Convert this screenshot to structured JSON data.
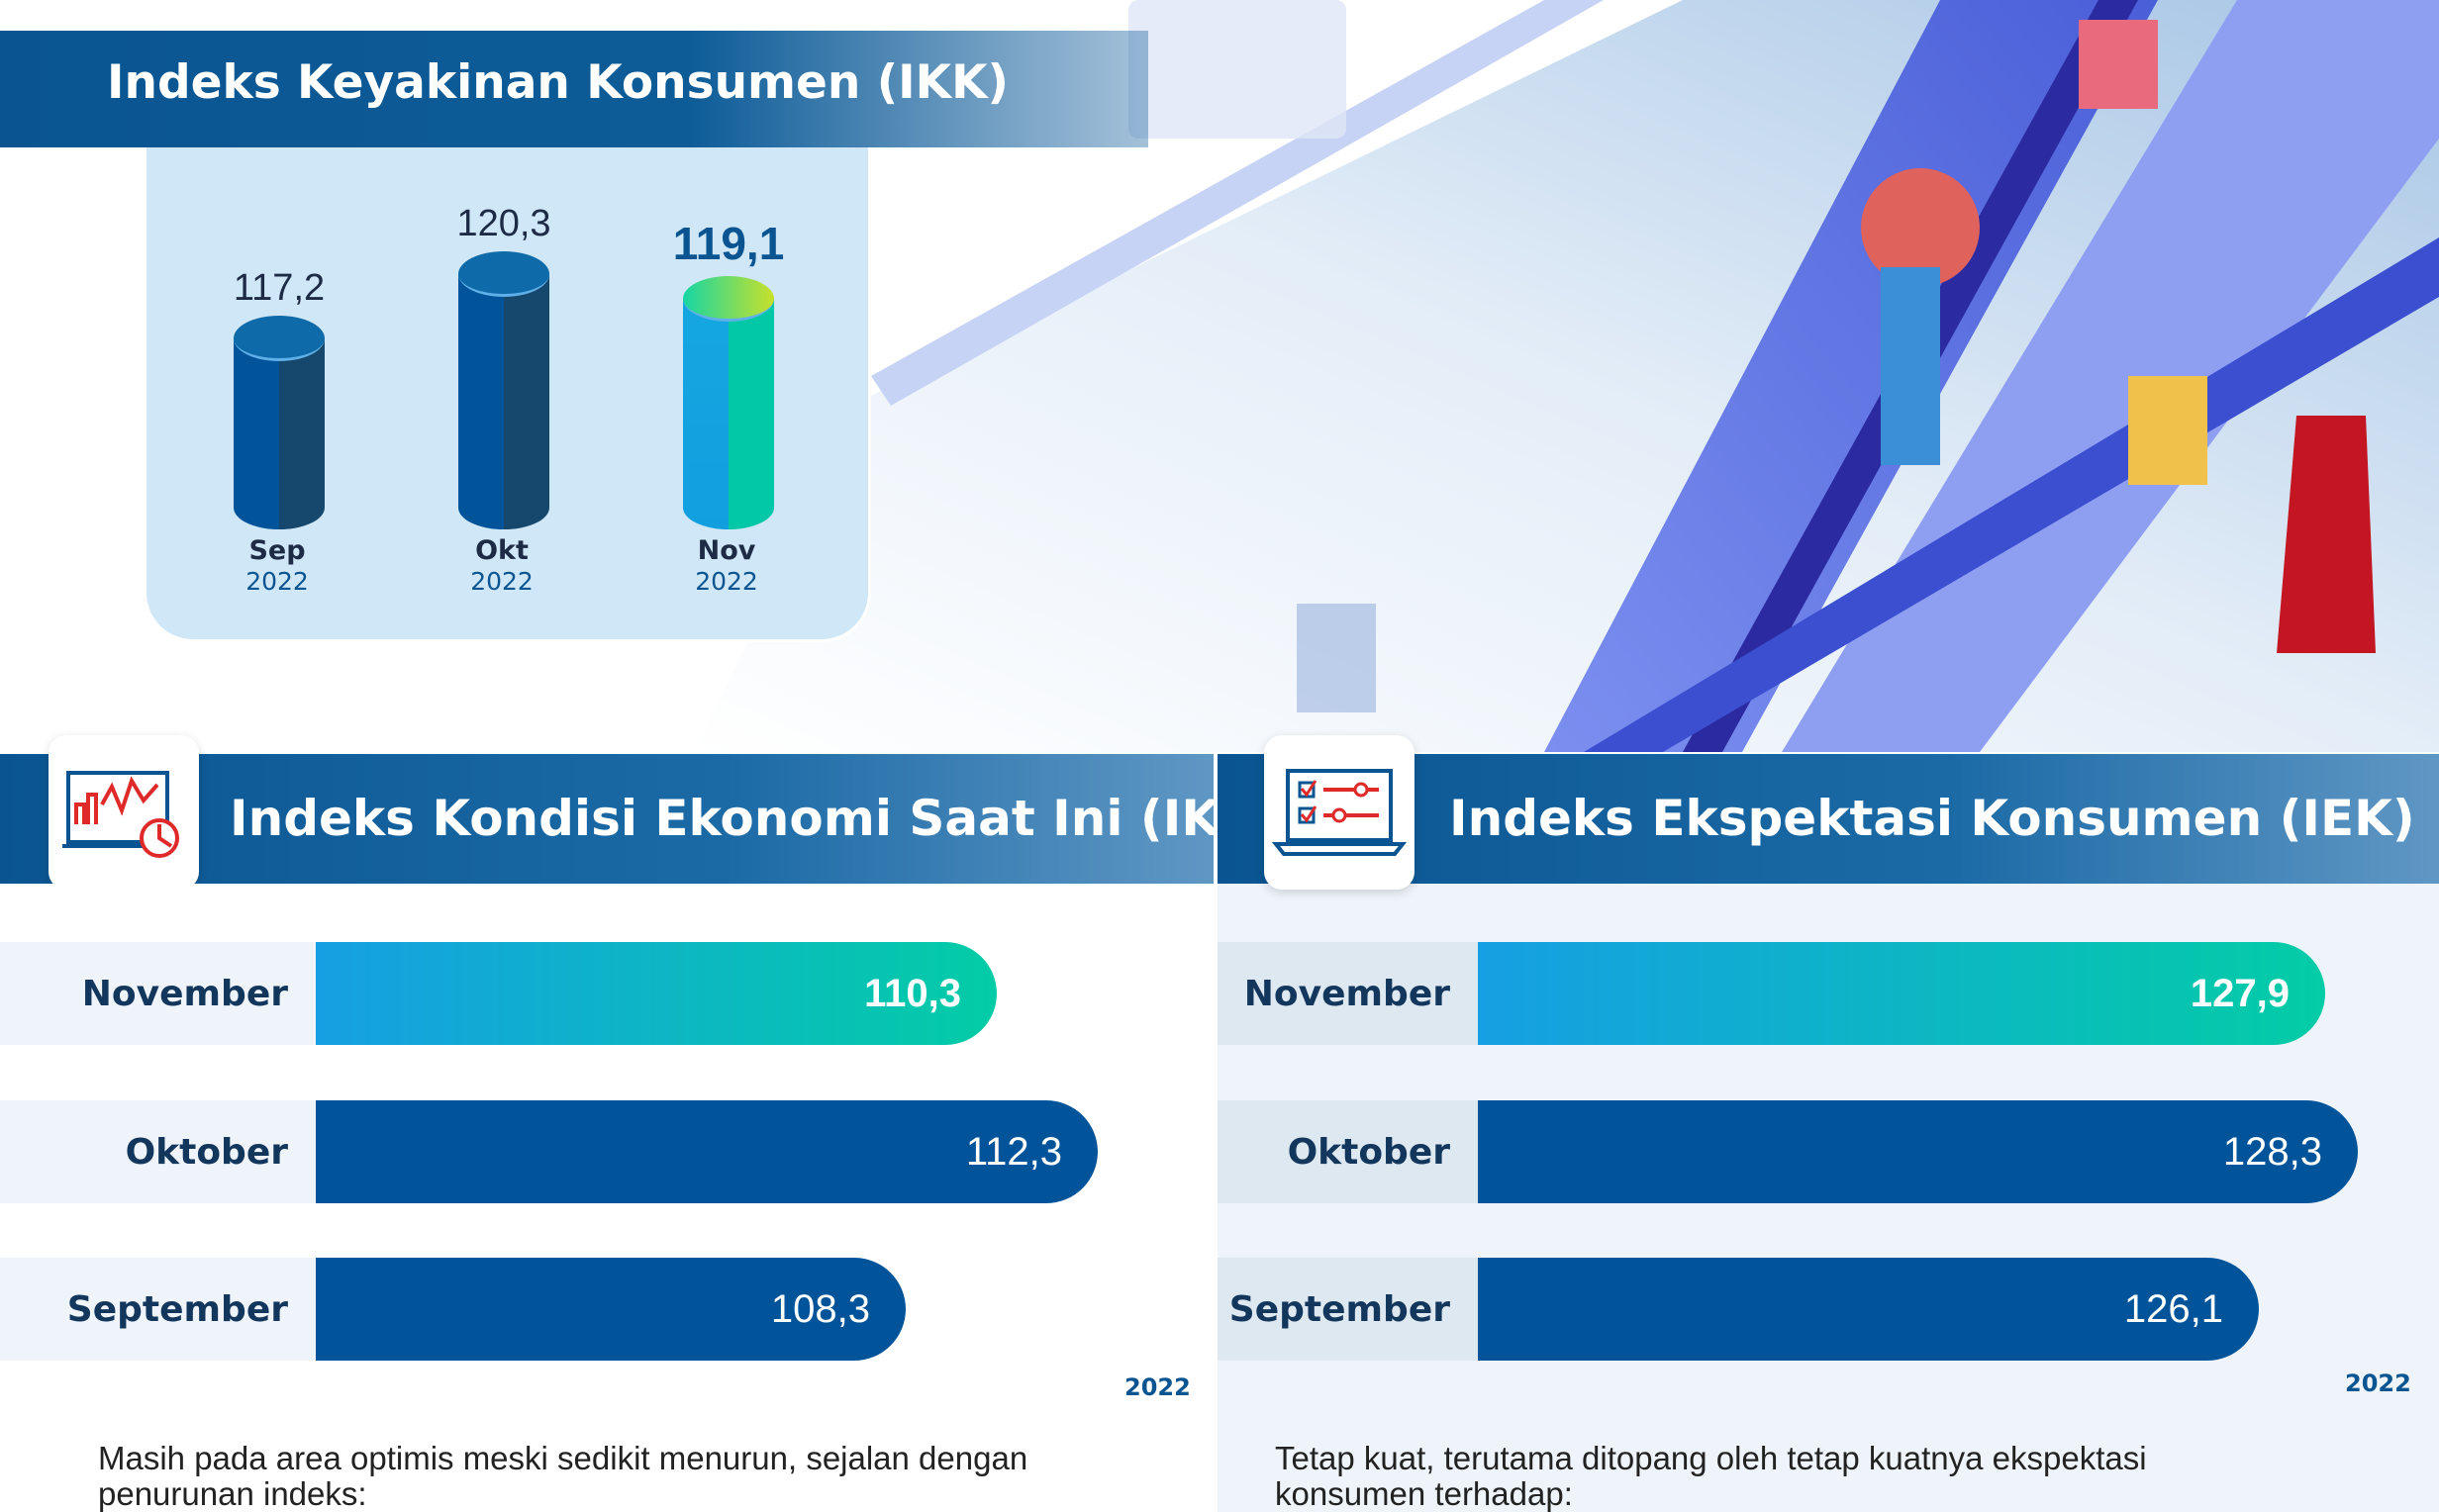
{
  "ikk": {
    "title": "Indeks Keyakinan Konsumen (IKK)",
    "bars": [
      {
        "month": "Sep",
        "year": "2022",
        "value": 117.2,
        "label": "117,2",
        "highlight": false
      },
      {
        "month": "Okt",
        "year": "2022",
        "value": 120.3,
        "label": "120,3",
        "highlight": false
      },
      {
        "month": "Nov",
        "year": "2022",
        "value": 119.1,
        "label": "119,1",
        "highlight": true
      }
    ]
  },
  "ike": {
    "title": "Indeks Kondisi Ekonomi Saat Ini (IKE)",
    "icon": "chart-dashboard-icon",
    "rows": [
      {
        "label": "November",
        "value": "110,3"
      },
      {
        "label": "Oktober",
        "value": "112,3"
      },
      {
        "label": "September",
        "value": "108,3"
      }
    ],
    "year": "2022",
    "text_line1": "Masih pada area optimis meski sedikit menurun, sejalan dengan",
    "text_line2": "penurunan indeks:"
  },
  "iek": {
    "title": "Indeks Ekspektasi Konsumen (IEK)",
    "icon": "laptop-checklist-icon",
    "rows": [
      {
        "label": "November",
        "value": "127,9"
      },
      {
        "label": "Oktober",
        "value": "128,3"
      },
      {
        "label": "September",
        "value": "126,1"
      }
    ],
    "year": "2022",
    "text_line1": "Tetap kuat, terutama ditopang oleh tetap kuatnya ekspektasi",
    "text_line2": "konsumen terhadap:"
  },
  "colors": {
    "primary": "#02549a",
    "panel": "#cfe7f6",
    "accent_start": "#169fe3",
    "accent_end": "#03cca6"
  },
  "chart_data": {
    "type": "bar",
    "title": "Indeks Keyakinan Konsumen (IKK)",
    "categories": [
      "Sep 2022",
      "Okt 2022",
      "Nov 2022"
    ],
    "values": [
      117.2,
      120.3,
      119.1
    ]
  }
}
